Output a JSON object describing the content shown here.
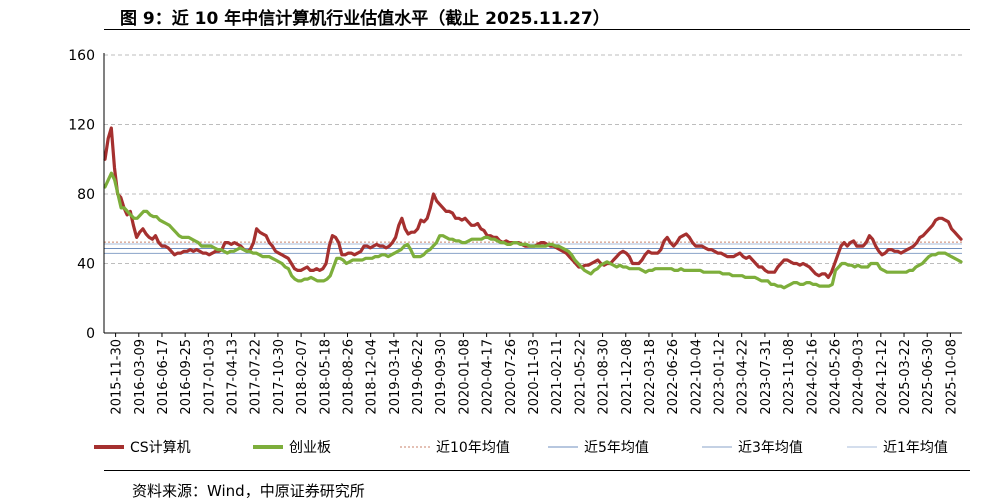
{
  "page": {
    "title": "图 9：近 10 年中信计算机行业估值水平（截止 2025.11.27）",
    "source": "资料来源：Wind，中原证券研究所"
  },
  "chart_data": {
    "type": "line",
    "title": "图 9：近 10 年中信计算机行业估值水平（截止 2025.11.27）",
    "xlabel": "",
    "ylabel": "",
    "ylim": [
      0,
      160
    ],
    "yticks": [
      0,
      40,
      80,
      120,
      160
    ],
    "grid": "horizontal dashed",
    "legend": "bottom",
    "x_ticks": [
      "2015-11-30",
      "2016-03-09",
      "2016-06-17",
      "2016-09-25",
      "2017-01-03",
      "2017-04-13",
      "2017-07-22",
      "2017-10-30",
      "2018-02-07",
      "2018-05-18",
      "2018-08-26",
      "2018-12-04",
      "2019-03-14",
      "2019-06-22",
      "2019-09-30",
      "2020-01-08",
      "2020-04-17",
      "2020-07-26",
      "2020-11-03",
      "2021-02-11",
      "2021-05-22",
      "2021-08-30",
      "2021-12-08",
      "2022-03-18",
      "2022-06-26",
      "2022-10-04",
      "2023-01-12",
      "2023-04-22",
      "2023-07-31",
      "2023-11-08",
      "2024-02-16",
      "2024-05-26",
      "2024-09-03",
      "2024-12-12",
      "2025-03-22",
      "2025-06-30",
      "2025-10-08"
    ],
    "series": [
      {
        "name": "CS计算机",
        "color": "#a5302f",
        "values": [
          100,
          112,
          118,
          95,
          80,
          78,
          72,
          68,
          70,
          62,
          55,
          58,
          60,
          57,
          55,
          54,
          56,
          52,
          50,
          50,
          49,
          47,
          45,
          46,
          46,
          47,
          47,
          48,
          47,
          48,
          47,
          46,
          46,
          45,
          46,
          47,
          47,
          48,
          52,
          52,
          51,
          52,
          51,
          50,
          48,
          47,
          48,
          52,
          60,
          58,
          57,
          56,
          52,
          50,
          47,
          46,
          45,
          44,
          43,
          40,
          37,
          36,
          36,
          37,
          38,
          36,
          36,
          37,
          36,
          37,
          40,
          50,
          56,
          55,
          52,
          45,
          45,
          46,
          46,
          45,
          46,
          47,
          50,
          50,
          49,
          50,
          51,
          50,
          50,
          49,
          50,
          52,
          55,
          62,
          66,
          60,
          57,
          58,
          58,
          60,
          65,
          64,
          66,
          72,
          80,
          76,
          74,
          72,
          70,
          70,
          69,
          66,
          66,
          65,
          66,
          64,
          62,
          62,
          63,
          60,
          59,
          56,
          56,
          55,
          55,
          53,
          52,
          53,
          52,
          52,
          52,
          52,
          51,
          50,
          50,
          50,
          50,
          51,
          52,
          52,
          51,
          50,
          50,
          49,
          48,
          47,
          46,
          44,
          42,
          40,
          38,
          38,
          39,
          39,
          40,
          41,
          42,
          40,
          39,
          40,
          40,
          42,
          44,
          46,
          47,
          46,
          44,
          40,
          40,
          40,
          42,
          45,
          47,
          46,
          46,
          46,
          48,
          53,
          55,
          52,
          50,
          52,
          55,
          56,
          57,
          55,
          52,
          50,
          50,
          50,
          49,
          48,
          48,
          47,
          46,
          46,
          45,
          44,
          44,
          44,
          45,
          46,
          44,
          43,
          44,
          42,
          40,
          38,
          38,
          36,
          35,
          35,
          35,
          38,
          40,
          42,
          42,
          41,
          40,
          40,
          39,
          40,
          39,
          38,
          36,
          34,
          33,
          34,
          34,
          32,
          35,
          40,
          45,
          50,
          52,
          50,
          52,
          53,
          50,
          50,
          50,
          52,
          56,
          54,
          50,
          47,
          45,
          46,
          48,
          48,
          47,
          47,
          46,
          47,
          48,
          49,
          50,
          52,
          55,
          56,
          58,
          60,
          62,
          65,
          66,
          66,
          65,
          64,
          60,
          58,
          56,
          54
        ]
      },
      {
        "name": "创业板",
        "color": "#7dae3b",
        "values": [
          84,
          88,
          92,
          88,
          80,
          72,
          72,
          70,
          68,
          66,
          66,
          68,
          70,
          70,
          68,
          67,
          67,
          65,
          64,
          63,
          62,
          60,
          58,
          56,
          55,
          55,
          55,
          54,
          53,
          52,
          50,
          50,
          50,
          50,
          49,
          48,
          48,
          47,
          46,
          47,
          47,
          48,
          49,
          48,
          47,
          47,
          46,
          46,
          45,
          44,
          44,
          44,
          43,
          42,
          41,
          40,
          38,
          37,
          33,
          31,
          30,
          30,
          31,
          31,
          32,
          31,
          30,
          30,
          30,
          31,
          33,
          38,
          43,
          43,
          42,
          40,
          41,
          42,
          42,
          42,
          42,
          43,
          43,
          43,
          44,
          44,
          45,
          45,
          44,
          45,
          46,
          47,
          48,
          50,
          51,
          48,
          44,
          44,
          44,
          45,
          47,
          48,
          50,
          52,
          56,
          56,
          55,
          54,
          54,
          53,
          53,
          52,
          52,
          53,
          54,
          54,
          54,
          54,
          55,
          55,
          54,
          54,
          53,
          52,
          52,
          51,
          51,
          52,
          52,
          51,
          51,
          51,
          50,
          50,
          50,
          50,
          50,
          50,
          51,
          51,
          50,
          50,
          49,
          48,
          47,
          45,
          42,
          40,
          38,
          36,
          35,
          34,
          36,
          37,
          39,
          40,
          41,
          40,
          39,
          38,
          39,
          38,
          38,
          37,
          37,
          37,
          37,
          36,
          35,
          36,
          36,
          37,
          37,
          37,
          37,
          37,
          37,
          36,
          36,
          37,
          36,
          36,
          36,
          36,
          36,
          36,
          35,
          35,
          35,
          35,
          35,
          35,
          34,
          34,
          34,
          33,
          33,
          33,
          33,
          32,
          32,
          32,
          32,
          31,
          30,
          30,
          30,
          28,
          28,
          27,
          27,
          26,
          27,
          28,
          29,
          29,
          28,
          28,
          29,
          29,
          28,
          28,
          27,
          27,
          27,
          27,
          28,
          36,
          38,
          40,
          40,
          39,
          39,
          38,
          39,
          38,
          38,
          38,
          40,
          40,
          40,
          37,
          36,
          35,
          35,
          35,
          35,
          35,
          35,
          35,
          36,
          36,
          38,
          39,
          40,
          42,
          44,
          45,
          45,
          46,
          46,
          46,
          45,
          44,
          43,
          42,
          41
        ]
      },
      {
        "name": "近10年均值",
        "color": "#c9826a",
        "style": "dotted",
        "value": 52.3
      },
      {
        "name": "近5年均值",
        "color": "#6f8fbf",
        "style": "solid",
        "value": 48.6
      },
      {
        "name": "近3年均值",
        "color": "#8aa3c8",
        "style": "solid",
        "value": 45.8
      },
      {
        "name": "近1年均值",
        "color": "#a9bddb",
        "style": "solid",
        "value": 51.2
      }
    ]
  }
}
